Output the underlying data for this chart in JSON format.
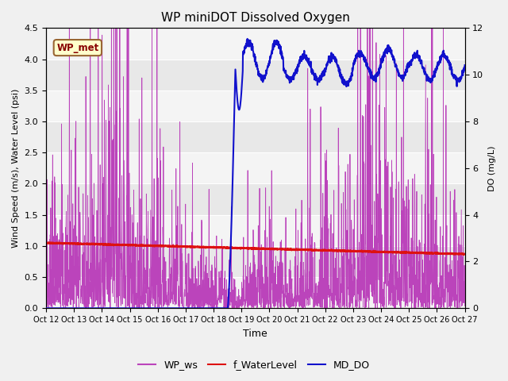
{
  "title": "WP miniDOT Dissolved Oxygen",
  "ylabel_left": "Wind Speed (m/s), Water Level (psi)",
  "ylabel_right": "DO (mg/L)",
  "xlabel": "Time",
  "ylim_left": [
    0,
    4.5
  ],
  "ylim_right": [
    0,
    12
  ],
  "annotation_text": "WP_met",
  "annotation_bg": "#FFFFCC",
  "annotation_border": "#996633",
  "annotation_text_color": "#880000",
  "xtick_labels": [
    "Oct 12",
    "Oct 13",
    "Oct 14",
    "Oct 15",
    "Oct 16",
    "Oct 17",
    "Oct 18",
    "Oct 19",
    "Oct 20",
    "Oct 21",
    "Oct 22",
    "Oct 23",
    "Oct 24",
    "Oct 25",
    "Oct 26",
    "Oct 27"
  ],
  "xtick_positions": [
    0,
    1,
    2,
    3,
    4,
    5,
    6,
    7,
    8,
    9,
    10,
    11,
    12,
    13,
    14,
    15
  ],
  "background_color": "#f0f0f0",
  "plot_bg_alt1": "#e8e8e8",
  "plot_bg_alt2": "#d8d8d8",
  "grid_color": "#ffffff",
  "wp_ws_color": "#BB44BB",
  "f_waterlevel_color": "#DD1111",
  "md_do_color": "#1111CC",
  "legend_entries": [
    "WP_ws",
    "f_WaterLevel",
    "MD_DO"
  ],
  "figsize": [
    6.4,
    4.8
  ],
  "dpi": 100
}
